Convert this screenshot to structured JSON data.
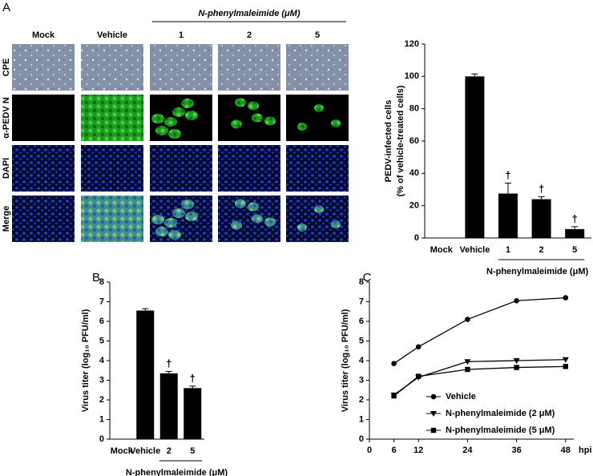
{
  "figure": {
    "panel_labels": [
      "A",
      "B",
      "C"
    ],
    "micrographs": {
      "drug": "N-phenylmaleimide (μM)",
      "columns": [
        "Mock",
        "Vehicle",
        "1",
        "2",
        "5"
      ],
      "rows": [
        "CPE",
        "α-PEDV N",
        "DAPI",
        "Merge"
      ]
    }
  },
  "chart_data": [
    {
      "type": "bar",
      "ylabel": [
        "PEDV-infected cells",
        "(% of vehicle-treated cells)"
      ],
      "categories": [
        "Mock",
        "Vehicle",
        "1",
        "2",
        "5"
      ],
      "values": [
        0,
        100,
        27.5,
        24,
        5.5
      ],
      "errors": [
        null,
        1.5,
        6.5,
        1.5,
        1.5
      ],
      "significance": [
        null,
        null,
        "†",
        "†",
        "†"
      ],
      "group_label": "N-phenylmaleimide (μM)",
      "ylim": [
        0,
        120
      ],
      "yticks": [
        0,
        20,
        40,
        60,
        80,
        100,
        120
      ],
      "color": "#000000"
    },
    {
      "type": "bar",
      "ylabel": [
        "Virus titer (log₁₀ PFU/ml)"
      ],
      "categories": [
        "Mock",
        "Vehicle",
        "2",
        "5"
      ],
      "values": [
        0,
        6.55,
        3.35,
        2.6
      ],
      "errors": [
        null,
        0.1,
        0.1,
        0.1
      ],
      "significance": [
        null,
        null,
        "†",
        "†"
      ],
      "group_label": "N-phenylmaleimide (μM)",
      "ylim": [
        0,
        8
      ],
      "yticks": [
        0,
        1,
        2,
        3,
        4,
        5,
        6,
        7,
        8
      ],
      "color": "#000000"
    },
    {
      "type": "line",
      "ylabel": [
        "Virus titer (log₁₀ PFU/ml)"
      ],
      "xlabel": "hpi",
      "x": [
        6,
        12,
        24,
        36,
        48
      ],
      "series": [
        {
          "name": "Vehicle",
          "color": "#000000",
          "marker": "circle",
          "values": [
            3.85,
            4.7,
            6.1,
            7.05,
            7.2
          ]
        },
        {
          "name": "N-phenylmaleimide (2 μM)",
          "color": "#000000",
          "marker": "triangle-down",
          "values": [
            2.25,
            3.15,
            3.95,
            4.0,
            4.05
          ]
        },
        {
          "name": "N-phenylmaleimide (5 μM)",
          "color": "#000000",
          "marker": "square",
          "values": [
            2.2,
            3.2,
            3.55,
            3.65,
            3.7
          ]
        }
      ],
      "xlim": [
        0,
        50
      ],
      "xticks": [
        0,
        6,
        12,
        24,
        36,
        48
      ],
      "ylim": [
        0,
        8
      ],
      "yticks": [
        0,
        1,
        2,
        3,
        4,
        5,
        6,
        7,
        8
      ]
    }
  ]
}
